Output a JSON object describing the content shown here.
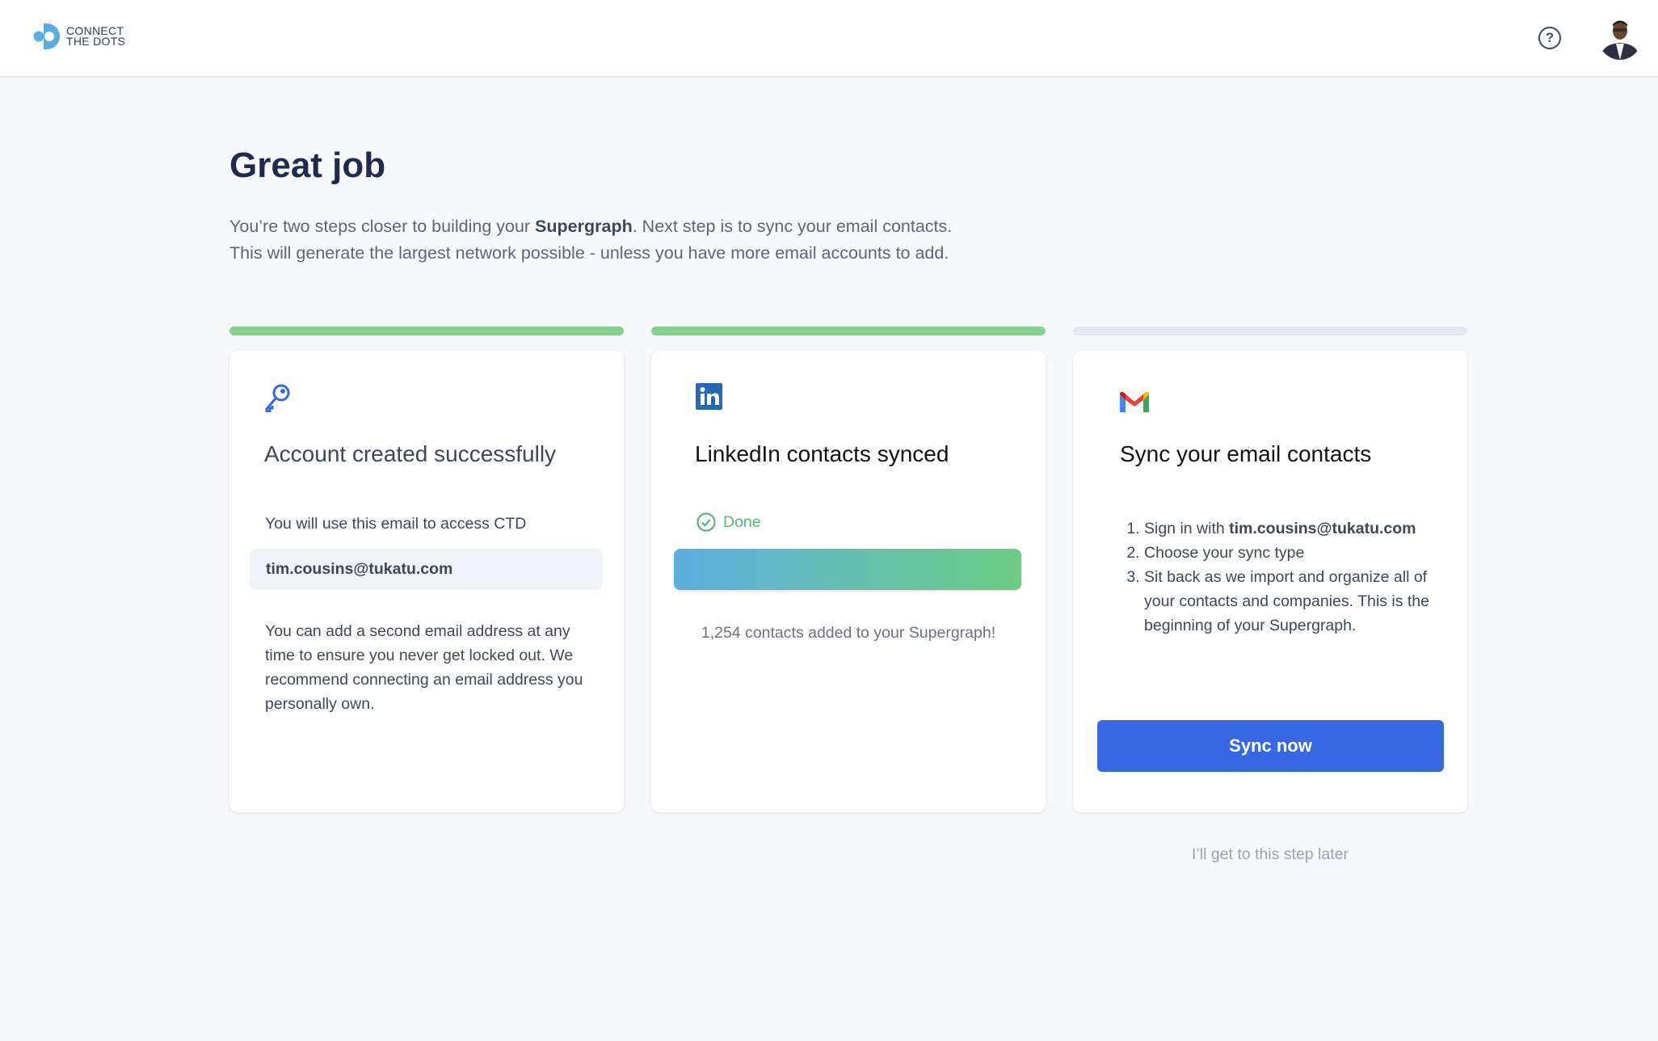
{
  "header": {
    "logo_line1": "CONNECT",
    "logo_line2": "THE DOTS",
    "help_icon": "question-circle-icon",
    "avatar_alt": "user avatar"
  },
  "page": {
    "title": "Great job",
    "subtitle_pre": "You’re two steps closer to building your ",
    "subtitle_bold": "Supergraph",
    "subtitle_post": ". Next step is to sync your email contacts.",
    "subtitle_line2": "This will generate the largest network possible - unless you have more email accounts to add."
  },
  "progress": {
    "steps": [
      {
        "complete": true
      },
      {
        "complete": true
      },
      {
        "complete": false
      }
    ],
    "colors": {
      "complete": "#86d190",
      "incomplete": "#e3e6ee"
    }
  },
  "cards": [
    {
      "icon": "key-icon",
      "title": "Account created successfully",
      "label": "You will use this email to access CTD",
      "email": "tim.cousins@tukatu.com",
      "note": "You can add a second email address at any time to ensure you never get locked out. We recommend connecting an email address you personally own."
    },
    {
      "icon": "linkedin-icon",
      "title": "LinkedIn contacts synced",
      "status": "Done",
      "progress_percent": 100,
      "result": "1,254 contacts added to your Supergraph!"
    },
    {
      "icon": "gmail-icon",
      "title": "Sync your email contacts",
      "steps": [
        {
          "pre": "Sign in with ",
          "bold": "tim.cousins@tukatu.com"
        },
        {
          "pre": "Choose your sync type"
        },
        {
          "pre": "Sit back as we import and organize all of your contacts and companies. This is the beginning of your Supergraph."
        }
      ],
      "button": "Sync now"
    }
  ],
  "skip_link": "I’ll get to this step later",
  "colors": {
    "accent": "#3867e3",
    "success": "#5cb574",
    "title": "#1e2b4f"
  }
}
